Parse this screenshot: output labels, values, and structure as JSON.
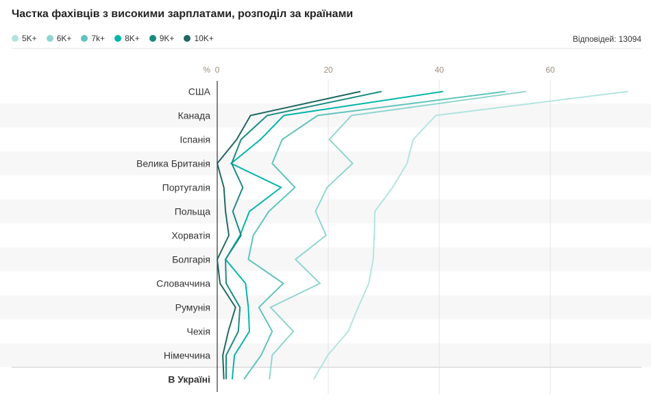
{
  "title": "Частка фахівців з високими зарплатами, розподіл за країнами",
  "responses": "Відповідей: 13094",
  "chart_data": {
    "type": "line",
    "orientation": "horizontal",
    "title": "Частка фахівців з високими зарплатами, розподіл за країнами",
    "xlabel": "%",
    "xlim": [
      0,
      74
    ],
    "xticks": [
      0,
      20,
      40,
      60
    ],
    "grid": true,
    "legend_position": "top-left",
    "categories": [
      "США",
      "Канада",
      "Іспанія",
      "Велика Британія",
      "Португалія",
      "Польща",
      "Хорватія",
      "Болгарія",
      "Словаччина",
      "Румунія",
      "Чехія",
      "Німеччина",
      "В Україні"
    ],
    "highlight_category": "В Україні",
    "series": [
      {
        "name": "5K+",
        "color": "#b2e4df",
        "values": [
          74,
          39.4,
          35.3,
          34.2,
          31.6,
          28.4,
          28.3,
          28.1,
          27.3,
          25.4,
          23.6,
          19.9,
          17.4
        ]
      },
      {
        "name": "6K+",
        "color": "#8fd5cf",
        "values": [
          55.6,
          24.2,
          20.2,
          24.4,
          19.8,
          17.7,
          19.6,
          14.1,
          18.5,
          9.6,
          13.7,
          9.9,
          9.4
        ]
      },
      {
        "name": "7k+",
        "color": "#5ec4bc",
        "values": [
          51.9,
          18.1,
          11.7,
          9.9,
          14,
          9.3,
          6.5,
          5.6,
          11.9,
          7.5,
          9.9,
          7.9,
          4.8
        ]
      },
      {
        "name": "8K+",
        "color": "#00b5a8",
        "values": [
          40.7,
          12,
          7.8,
          2.5,
          11.5,
          5.8,
          4.1,
          1.5,
          5.1,
          5.6,
          5.8,
          3.1,
          2.7
        ]
      },
      {
        "name": "9K+",
        "color": "#1a8a80",
        "values": [
          29.6,
          9,
          4.3,
          2.6,
          4.6,
          2.8,
          4.3,
          1.5,
          1.6,
          4.1,
          3.8,
          1.6,
          1.6
        ]
      },
      {
        "name": "10K+",
        "color": "#1f6661",
        "values": [
          25.8,
          6,
          3.5,
          0,
          1.2,
          1.5,
          2.1,
          0,
          0.5,
          3.3,
          2,
          1,
          1.2
        ]
      }
    ]
  }
}
